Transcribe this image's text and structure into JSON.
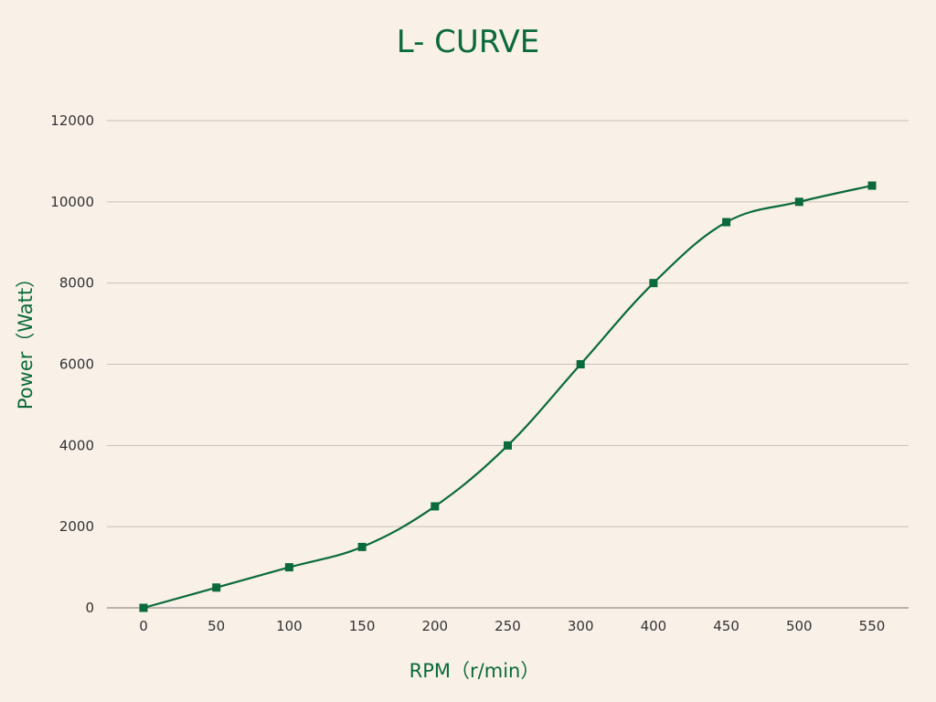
{
  "chart_data": {
    "type": "line",
    "title": "L- CURVE",
    "xlabel": "RPM（r/min）",
    "ylabel": "Power（Watt）",
    "categories": [
      "0",
      "50",
      "100",
      "150",
      "200",
      "250",
      "300",
      "400",
      "450",
      "500",
      "550"
    ],
    "series": [
      {
        "values": [
          0,
          500,
          1000,
          1500,
          2500,
          4000,
          6000,
          8000,
          9500,
          10000,
          10400
        ]
      }
    ],
    "ylim": [
      0,
      12000
    ],
    "yticks": [
      "0",
      "2000",
      "4000",
      "6000",
      "8000",
      "10000",
      "12000"
    ],
    "grid": true,
    "legend": "none",
    "smooth": true,
    "marker": "square",
    "colors": {
      "background": "#f9f0e8",
      "series": "#0a6a3a",
      "title": "#0a6a3a",
      "grid": "#c9c0b8",
      "tick_text": "#333333"
    }
  }
}
